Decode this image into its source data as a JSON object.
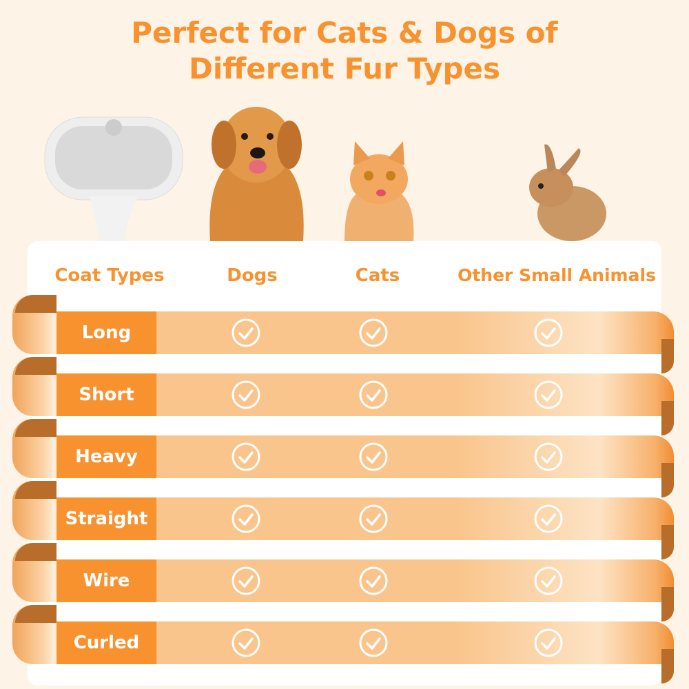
{
  "title": {
    "line1": "Perfect for Cats & Dogs of",
    "line2": "Different Fur Types"
  },
  "colors": {
    "accent": "#f7922f",
    "row": "#f9c58c",
    "background": "#fdf3e6"
  },
  "images": [
    "grooming-brush",
    "golden-retriever-dog",
    "orange-kitten",
    "rabbit"
  ],
  "table": {
    "headers": [
      "Coat Types",
      "Dogs",
      "Cats",
      "Other Small Animals"
    ],
    "rows": [
      {
        "label": "Long",
        "dogs": true,
        "cats": true,
        "other": true
      },
      {
        "label": "Short",
        "dogs": true,
        "cats": true,
        "other": true
      },
      {
        "label": "Heavy",
        "dogs": true,
        "cats": true,
        "other": true
      },
      {
        "label": "Straight",
        "dogs": true,
        "cats": true,
        "other": true
      },
      {
        "label": "Wire",
        "dogs": true,
        "cats": true,
        "other": true
      },
      {
        "label": "Curled",
        "dogs": true,
        "cats": true,
        "other": true
      }
    ],
    "check_icon": "check-circle-icon"
  }
}
